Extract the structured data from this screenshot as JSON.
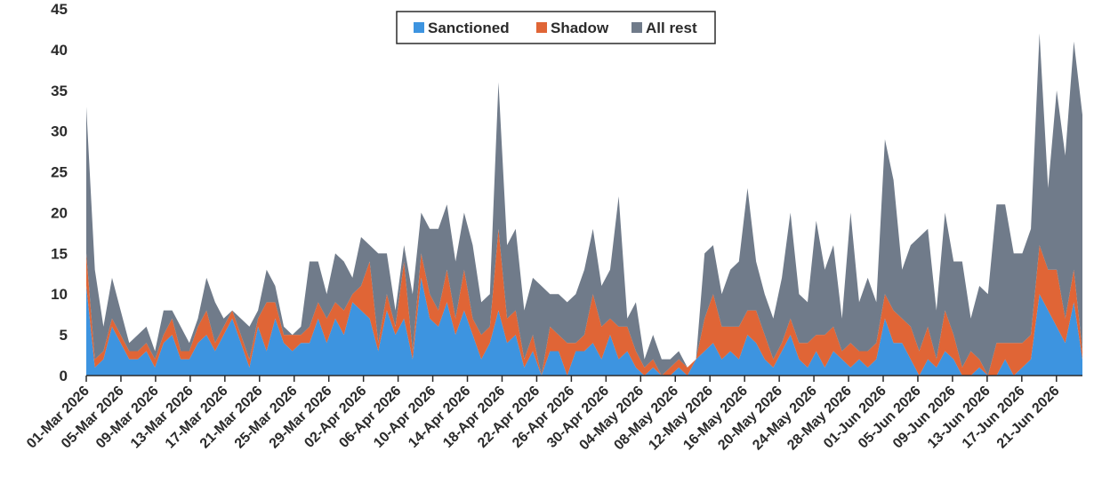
{
  "chart_data": {
    "type": "area",
    "stacked": true,
    "title": "",
    "xlabel": "",
    "ylabel": "",
    "ylim": [
      0,
      45
    ],
    "yticks": [
      0,
      5,
      10,
      15,
      20,
      25,
      30,
      35,
      40,
      45
    ],
    "grid": false,
    "legend_position": "top-center",
    "x_tick_labels": [
      "01-Mar 2026",
      "05-Mar 2026",
      "09-Mar 2026",
      "13-Mar 2026",
      "17-Mar 2026",
      "21-Mar 2026",
      "25-Mar 2026",
      "29-Mar 2026",
      "02-Apr 2026",
      "06-Apr 2026",
      "10-Apr 2026",
      "14-Apr 2026",
      "18-Apr 2026",
      "22-Apr 2026",
      "26-Apr 2026",
      "30-Apr 2026",
      "04-May 2026",
      "08-May 2026",
      "12-May 2026",
      "16-May 2026",
      "20-May 2026",
      "24-May 2026",
      "28-May 2026",
      "01-Jun 2026",
      "05-Jun 2026",
      "09-Jun 2026",
      "13-Jun 2026",
      "17-Jun 2026",
      "21-Jun 2026"
    ],
    "x_start": "2026-03-01",
    "x_end": "2026-06-24",
    "series": [
      {
        "name": "Sanctioned",
        "color": "#3d94e0",
        "values": [
          11,
          1,
          2,
          6,
          4,
          2,
          2,
          3,
          1,
          4,
          5,
          2,
          2,
          4,
          5,
          3,
          5,
          7,
          4,
          1,
          6,
          3,
          7,
          4,
          3,
          4,
          4,
          7,
          4,
          7,
          5,
          9,
          8,
          7,
          3,
          8,
          5,
          7,
          2,
          12,
          7,
          6,
          9,
          5,
          8,
          5,
          2,
          4,
          8,
          4,
          5,
          1,
          3,
          0,
          3,
          3,
          0,
          3,
          3,
          4,
          2,
          5,
          2,
          3,
          1,
          0,
          1,
          0,
          0,
          1,
          0,
          2,
          3,
          4,
          2,
          3,
          2,
          5,
          4,
          2,
          1,
          3,
          5,
          2,
          1,
          3,
          1,
          3,
          2,
          1,
          2,
          1,
          2,
          7,
          4,
          4,
          2,
          0,
          2,
          1,
          3,
          2,
          0,
          0,
          1,
          0,
          0,
          2,
          0,
          1,
          2,
          10,
          8,
          6,
          4,
          9,
          2
        ]
      },
      {
        "name": "Shadow",
        "color": "#e06536",
        "values": [
          4,
          1,
          1,
          1,
          1,
          1,
          1,
          1,
          1,
          1,
          2,
          1,
          1,
          2,
          3,
          1,
          1,
          1,
          1,
          1,
          1,
          6,
          2,
          1,
          2,
          1,
          2,
          2,
          3,
          2,
          3,
          1,
          3,
          7,
          1,
          2,
          1,
          7,
          1,
          3,
          3,
          2,
          4,
          2,
          5,
          2,
          3,
          2,
          10,
          3,
          3,
          1,
          2,
          0,
          3,
          2,
          4,
          1,
          2,
          6,
          4,
          2,
          4,
          3,
          2,
          1,
          1,
          0,
          1,
          1,
          1,
          0,
          4,
          6,
          4,
          3,
          4,
          3,
          4,
          3,
          1,
          1,
          2,
          2,
          3,
          2,
          4,
          3,
          1,
          3,
          1,
          2,
          2,
          3,
          4,
          3,
          4,
          3,
          4,
          1,
          5,
          3,
          1,
          3,
          1,
          0,
          4,
          2,
          4,
          3,
          3,
          6,
          5,
          7,
          3,
          4,
          1
        ]
      },
      {
        "name": "All rest",
        "color": "#707b8a",
        "values": [
          18,
          11,
          3,
          5,
          3,
          1,
          2,
          2,
          1,
          3,
          1,
          3,
          1,
          1,
          4,
          5,
          1,
          0,
          2,
          4,
          1,
          4,
          2,
          1,
          0,
          1,
          8,
          5,
          3,
          6,
          6,
          2,
          6,
          2,
          11,
          5,
          2,
          2,
          7,
          5,
          8,
          10,
          8,
          7,
          7,
          9,
          4,
          4,
          18,
          9,
          10,
          6,
          7,
          11,
          4,
          5,
          5,
          6,
          8,
          8,
          5,
          6,
          16,
          1,
          6,
          1,
          3,
          2,
          1,
          1,
          0,
          0,
          8,
          6,
          4,
          7,
          8,
          15,
          6,
          5,
          5,
          8,
          13,
          6,
          5,
          14,
          8,
          10,
          4,
          16,
          6,
          9,
          5,
          19,
          16,
          6,
          10,
          14,
          12,
          6,
          12,
          9,
          13,
          4,
          9,
          10,
          17,
          17,
          11,
          11,
          13,
          26,
          10,
          22,
          20,
          28,
          29
        ]
      }
    ],
    "legend": [
      "Sanctioned",
      "Shadow",
      "All rest"
    ]
  }
}
